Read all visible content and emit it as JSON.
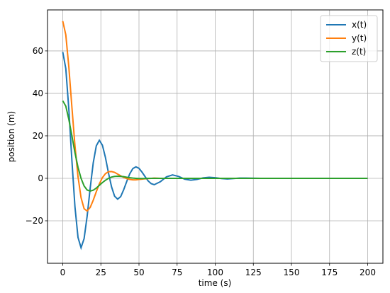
{
  "chart_data": {
    "type": "line",
    "xlabel": "time (s)",
    "ylabel": "position (m)",
    "x": [
      0,
      2,
      4,
      6,
      8,
      10,
      12,
      14,
      16,
      18,
      20,
      22,
      24,
      26,
      28,
      30,
      32,
      34,
      36,
      38,
      40,
      42,
      44,
      46,
      48,
      50,
      52,
      54,
      56,
      58,
      60,
      64,
      68,
      72,
      76,
      80,
      84,
      88,
      92,
      96,
      100,
      104,
      108,
      112,
      116,
      120,
      130,
      140,
      150,
      160,
      170,
      180,
      190,
      200
    ],
    "series": [
      {
        "name": "x(t)",
        "color": "#1f77b4",
        "values": [
          59.5,
          51.7,
          32.4,
          8.4,
          -13.4,
          -27.8,
          -32.7,
          -28.4,
          -17.8,
          -4.6,
          7.3,
          15.3,
          17.9,
          15.6,
          9.8,
          2.5,
          -4.0,
          -8.4,
          -9.8,
          -8.6,
          -5.3,
          -1.4,
          2.2,
          4.6,
          5.4,
          4.7,
          2.9,
          0.8,
          -1.2,
          -2.5,
          -3.0,
          -1.6,
          0.7,
          1.6,
          0.9,
          -0.4,
          -0.9,
          -0.5,
          0.2,
          0.5,
          0.3,
          -0.1,
          -0.3,
          -0.1,
          0.1,
          0.1,
          0,
          0,
          0,
          0,
          0,
          0,
          0,
          0
        ]
      },
      {
        "name": "y(t)",
        "color": "#ff7f0e",
        "values": [
          74,
          67.6,
          52.3,
          33.5,
          15.4,
          0.8,
          -9.1,
          -14.3,
          -15.4,
          -13.7,
          -10.3,
          -6.3,
          -2.6,
          0.3,
          2.2,
          3.1,
          3.2,
          2.8,
          2.0,
          1.2,
          0.4,
          -0.1,
          -0.5,
          -0.7,
          -0.7,
          -0.5,
          -0.4,
          -0.2,
          -0.1,
          0,
          0.1,
          0,
          0,
          0,
          0,
          0,
          0,
          0,
          0,
          0,
          0,
          0,
          0,
          0,
          0,
          0,
          0,
          0,
          0,
          0,
          0,
          0,
          0,
          0
        ]
      },
      {
        "name": "z(t)",
        "color": "#2ca02c",
        "values": [
          36.5,
          34.0,
          27.7,
          20.0,
          12.1,
          5.2,
          0,
          -3.6,
          -5.5,
          -6.0,
          -5.6,
          -4.6,
          -3.3,
          -2.0,
          -0.9,
          0,
          0.6,
          0.9,
          1.0,
          0.9,
          0.8,
          0.5,
          0.3,
          0.1,
          0,
          -0.1,
          -0.1,
          -0.1,
          0,
          0,
          0,
          0,
          0,
          0,
          0,
          0,
          0,
          0,
          0,
          0,
          0,
          0,
          0,
          0,
          0,
          0,
          0,
          0,
          0,
          0,
          0,
          0,
          0,
          0
        ]
      }
    ],
    "xlim": [
      -10,
      210
    ],
    "xticks": [
      0,
      25,
      50,
      75,
      100,
      125,
      150,
      175,
      200
    ],
    "ylim": [
      -40,
      79.3
    ],
    "yticks": [
      {
        "value": -20,
        "label": "−20"
      },
      0,
      20,
      40,
      60
    ],
    "grid": true,
    "legend": "upper right"
  }
}
